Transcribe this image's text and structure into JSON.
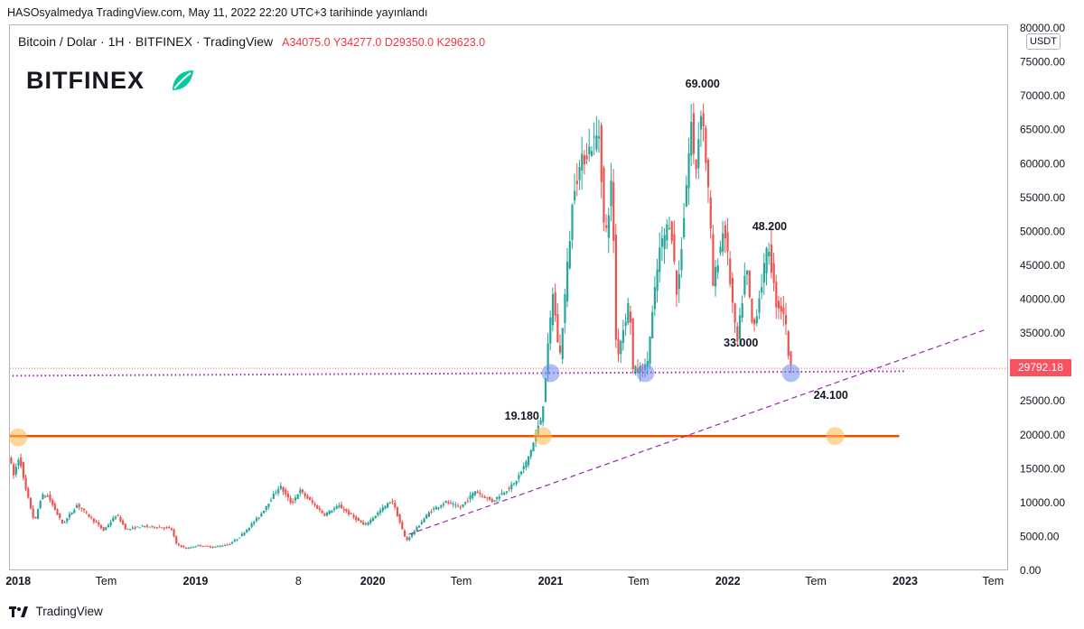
{
  "header": {
    "published": "HASOsyalmedya TradingView.com, May 11, 2022 22:20 UTC+3 tarihinde yayınlandı"
  },
  "legend": {
    "symbol": "Bitcoin / Dolar · 1H · BITFINEX · TradingView",
    "open": "A34075.0",
    "high": "Y34277.0",
    "low": "D29350.0",
    "close": "K29623.0"
  },
  "watermark": {
    "brand": "BITFINEX"
  },
  "axis": {
    "currency": "USDT",
    "last_price": "29792.18"
  },
  "footer": {
    "brand": "TradingView"
  },
  "colors": {
    "up": "#26a69a",
    "down": "#ef5350",
    "support": "#e65100",
    "trend": "#9c27b0",
    "price_tag": "#f7525f"
  },
  "chart_data": {
    "type": "candlestick",
    "title": "Bitcoin / Dolar · 1H · BITFINEX · TradingView",
    "ylim": [
      0,
      80000
    ],
    "yticks": [
      0,
      5000,
      10000,
      15000,
      20000,
      25000,
      30000,
      35000,
      40000,
      45000,
      50000,
      55000,
      60000,
      65000,
      70000,
      75000,
      80000
    ],
    "ytick_labels": [
      "0.00",
      "5000.00",
      "10000.00",
      "15000.00",
      "20000.00",
      "25000.00",
      "30000.00",
      "35000.00",
      "40000.00",
      "45000.00",
      "50000.00",
      "55000.00",
      "60000.00",
      "65000.00",
      "70000.00",
      "75000.00",
      "80000.00"
    ],
    "x_axis": {
      "range": [
        "2017-12-15",
        "2023-08-01"
      ],
      "ticks": [
        {
          "date": "2018-01-01",
          "label": "2018",
          "bold": true
        },
        {
          "date": "2018-07-01",
          "label": "Tem",
          "bold": false
        },
        {
          "date": "2019-01-01",
          "label": "2019",
          "bold": true
        },
        {
          "date": "2019-08-01",
          "label": "8",
          "bold": false
        },
        {
          "date": "2020-01-01",
          "label": "2020",
          "bold": true
        },
        {
          "date": "2020-07-01",
          "label": "Tem",
          "bold": false
        },
        {
          "date": "2021-01-01",
          "label": "2021",
          "bold": true
        },
        {
          "date": "2021-07-01",
          "label": "Tem",
          "bold": false
        },
        {
          "date": "2022-01-01",
          "label": "2022",
          "bold": true
        },
        {
          "date": "2022-07-01",
          "label": "Tem",
          "bold": false
        },
        {
          "date": "2023-01-01",
          "label": "2023",
          "bold": true
        },
        {
          "date": "2023-07-01",
          "label": "Tem",
          "bold": false
        }
      ]
    },
    "price_path": [
      [
        "2017-12-15",
        17000
      ],
      [
        "2017-12-25",
        14000
      ],
      [
        "2018-01-06",
        17000
      ],
      [
        "2018-01-15",
        13000
      ],
      [
        "2018-02-06",
        7000
      ],
      [
        "2018-02-20",
        11000
      ],
      [
        "2018-03-05",
        11000
      ],
      [
        "2018-04-05",
        6800
      ],
      [
        "2018-05-05",
        9700
      ],
      [
        "2018-06-28",
        5900
      ],
      [
        "2018-07-25",
        8200
      ],
      [
        "2018-08-14",
        6000
      ],
      [
        "2018-09-15",
        6500
      ],
      [
        "2018-10-15",
        6400
      ],
      [
        "2018-11-14",
        6200
      ],
      [
        "2018-11-25",
        3900
      ],
      [
        "2018-12-15",
        3200
      ],
      [
        "2019-01-10",
        3700
      ],
      [
        "2019-02-08",
        3400
      ],
      [
        "2019-03-15",
        3900
      ],
      [
        "2019-04-05",
        5000
      ],
      [
        "2019-05-15",
        8000
      ],
      [
        "2019-06-26",
        12500
      ],
      [
        "2019-07-20",
        9800
      ],
      [
        "2019-08-06",
        11800
      ],
      [
        "2019-09-25",
        8200
      ],
      [
        "2019-10-26",
        9500
      ],
      [
        "2019-12-17",
        6600
      ],
      [
        "2020-02-12",
        10400
      ],
      [
        "2020-03-12",
        4300
      ],
      [
        "2020-04-30",
        8700
      ],
      [
        "2020-06-01",
        10100
      ],
      [
        "2020-07-01",
        9200
      ],
      [
        "2020-08-01",
        11700
      ],
      [
        "2020-09-05",
        10200
      ],
      [
        "2020-10-21",
        12800
      ],
      [
        "2020-11-15",
        16000
      ],
      [
        "2020-12-01",
        19200
      ],
      [
        "2020-12-17",
        23000
      ],
      [
        "2021-01-08",
        41000
      ],
      [
        "2021-01-22",
        31000
      ],
      [
        "2021-02-21",
        57000
      ],
      [
        "2021-03-13",
        61000
      ],
      [
        "2021-04-14",
        64500
      ],
      [
        "2021-04-25",
        48000
      ],
      [
        "2021-05-10",
        58000
      ],
      [
        "2021-05-19",
        31000
      ],
      [
        "2021-06-15",
        40000
      ],
      [
        "2021-06-22",
        29500
      ],
      [
        "2021-07-20",
        29800
      ],
      [
        "2021-08-15",
        47000
      ],
      [
        "2021-09-07",
        52000
      ],
      [
        "2021-09-21",
        40000
      ],
      [
        "2021-10-20",
        66000
      ],
      [
        "2021-10-28",
        58000
      ],
      [
        "2021-11-10",
        69000
      ],
      [
        "2021-11-26",
        54000
      ],
      [
        "2021-12-04",
        42000
      ],
      [
        "2021-12-27",
        51000
      ],
      [
        "2022-01-22",
        33000
      ],
      [
        "2022-02-10",
        45000
      ],
      [
        "2022-02-24",
        35000
      ],
      [
        "2022-03-28",
        48200
      ],
      [
        "2022-04-12",
        39500
      ],
      [
        "2022-04-30",
        38000
      ],
      [
        "2022-05-11",
        29800
      ]
    ],
    "last_price": 29792.18,
    "horizontal_lines": [
      {
        "name": "support",
        "y": 19800,
        "x_start": "2017-12-15",
        "x_end": "2022-12-20",
        "style": "solid"
      },
      {
        "name": "neckline",
        "y": 29100,
        "x_start": "2017-12-20",
        "x_end": "2023-01-01",
        "style": "dotted"
      }
    ],
    "trend_line": {
      "from": [
        "2020-03-15",
        5300
      ],
      "to": [
        "2023-06-15",
        35500
      ]
    },
    "markers": [
      {
        "date": "2018-01-01",
        "y": 19600,
        "color": "orange"
      },
      {
        "date": "2020-12-16",
        "y": 19800,
        "color": "orange"
      },
      {
        "date": "2022-08-10",
        "y": 19800,
        "color": "orange"
      },
      {
        "date": "2021-01-01",
        "y": 29100,
        "color": "blue"
      },
      {
        "date": "2021-07-15",
        "y": 29100,
        "color": "blue"
      },
      {
        "date": "2022-05-11",
        "y": 29100,
        "color": "blue"
      }
    ],
    "annotations": [
      {
        "text": "69.000",
        "date": "2021-11-10",
        "y": 71200
      },
      {
        "text": "48.200",
        "date": "2022-03-28",
        "y": 50200
      },
      {
        "text": "33.000",
        "date": "2022-01-28",
        "y": 33000
      },
      {
        "text": "24.100",
        "date": "2022-08-01",
        "y": 25300
      },
      {
        "text": "19.180",
        "date": "2020-11-03",
        "y": 22200
      }
    ]
  }
}
